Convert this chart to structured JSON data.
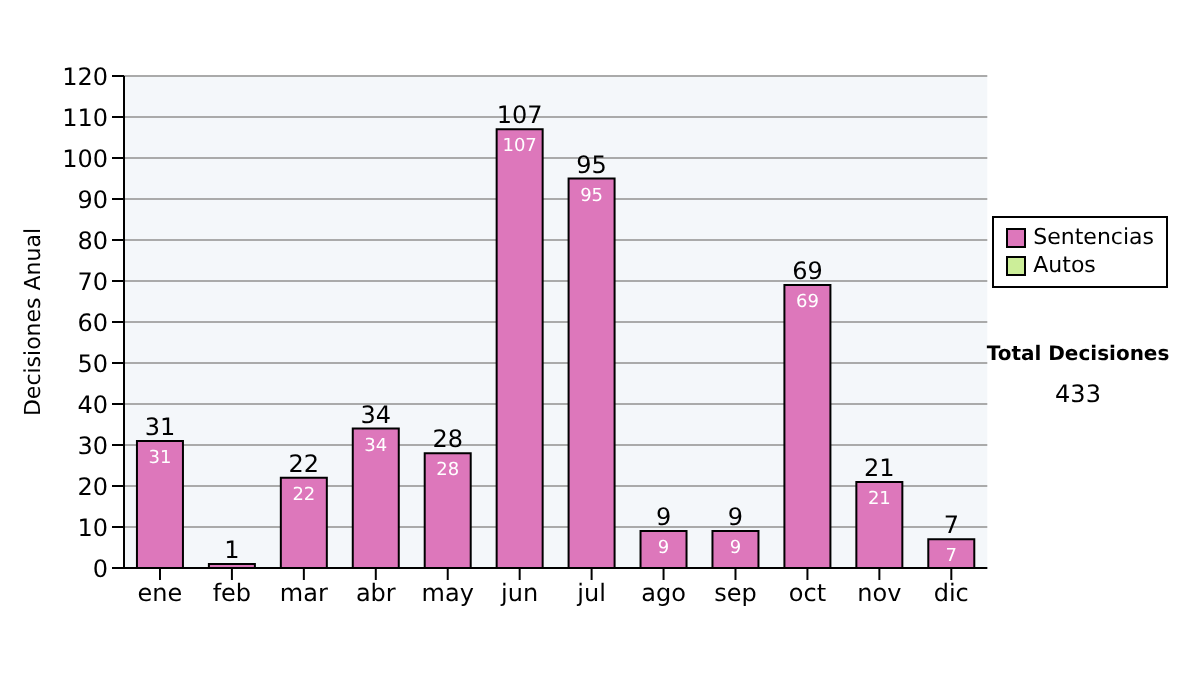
{
  "chart_data": {
    "type": "bar",
    "stacked": true,
    "ylabel": "Decisiones Anual",
    "categories": [
      "ene",
      "feb",
      "mar",
      "abr",
      "may",
      "jun",
      "jul",
      "ago",
      "sep",
      "oct",
      "nov",
      "dic"
    ],
    "series": [
      {
        "name": "Sentencias",
        "color": "#dd77bb",
        "values": [
          31,
          1,
          22,
          34,
          28,
          107,
          95,
          9,
          9,
          69,
          21,
          7
        ],
        "value_labels": [
          "31",
          null,
          "22",
          "34",
          "28",
          "107",
          "95",
          "9",
          "9",
          "69",
          "21",
          "7"
        ]
      },
      {
        "name": "Autos",
        "color": "#ccee99",
        "values": [
          0,
          0,
          0,
          0,
          0,
          0,
          0,
          0,
          0,
          0,
          0,
          0
        ]
      }
    ],
    "totals": [
      "31",
      "1",
      "22",
      "34",
      "28",
      "107",
      "95",
      "9",
      "9",
      "69",
      "21",
      "7"
    ],
    "ylim": [
      0,
      120
    ],
    "yticks": [
      0,
      10,
      20,
      30,
      40,
      50,
      60,
      70,
      80,
      90,
      100,
      110,
      120
    ],
    "grid": "y",
    "legend": "right",
    "annotations": [
      "Total Decisiones",
      "433"
    ]
  }
}
